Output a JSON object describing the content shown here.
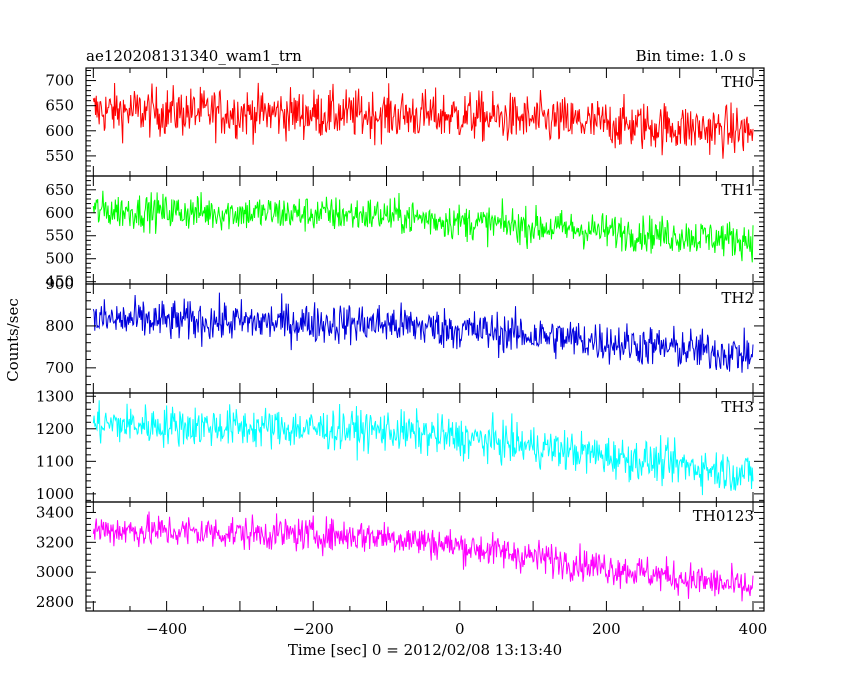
{
  "chart_data": {
    "type": "line",
    "title": "ae120208131340_wam1_trn",
    "subtitle": "Bin time: 1.0 s",
    "xlabel": "Time [sec] 0 = 2012/02/08 13:13:40",
    "ylabel": "Counts/sec",
    "xlim": [
      -510,
      415
    ],
    "x_ticks": [
      -400,
      -200,
      0,
      200,
      400
    ],
    "x_tick_labels": [
      "−400",
      "−200",
      "0",
      "200",
      "400"
    ],
    "x_range": [
      -500,
      400
    ],
    "bin_time_s": 1.0,
    "grid": false,
    "panels": [
      {
        "name": "TH0",
        "color": "#ff0000",
        "ylim": [
          510,
          725
        ],
        "y_ticks": [
          550,
          600,
          650,
          700
        ],
        "trend": [
          [
            -500,
            640
          ],
          [
            0,
            630
          ],
          [
            400,
            598
          ]
        ],
        "noise_amplitude": 35
      },
      {
        "name": "TH1",
        "color": "#00ff00",
        "ylim": [
          445,
          680
        ],
        "y_ticks": [
          450,
          500,
          550,
          600,
          650
        ],
        "trend": [
          [
            -500,
            605
          ],
          [
            -100,
            595
          ],
          [
            0,
            580
          ],
          [
            400,
            540
          ]
        ],
        "noise_amplitude": 28
      },
      {
        "name": "TH2",
        "color": "#0000dd",
        "ylim": [
          640,
          900
        ],
        "y_ticks": [
          700,
          800,
          900
        ],
        "trend": [
          [
            -500,
            815
          ],
          [
            -100,
            805
          ],
          [
            50,
            785
          ],
          [
            400,
            730
          ]
        ],
        "noise_amplitude": 35
      },
      {
        "name": "TH3",
        "color": "#00ffff",
        "ylim": [
          975,
          1310
        ],
        "y_ticks": [
          1000,
          1100,
          1200,
          1300
        ],
        "trend": [
          [
            -500,
            1215
          ],
          [
            -100,
            1195
          ],
          [
            50,
            1160
          ],
          [
            400,
            1060
          ]
        ],
        "noise_amplitude": 45
      },
      {
        "name": "TH0123",
        "color": "#ff00ff",
        "ylim": [
          2740,
          3470
        ],
        "y_ticks": [
          2800,
          3000,
          3200,
          3400
        ],
        "trend": [
          [
            -500,
            3285
          ],
          [
            -100,
            3240
          ],
          [
            50,
            3140
          ],
          [
            400,
            2890
          ]
        ],
        "noise_amplitude": 80
      }
    ]
  }
}
